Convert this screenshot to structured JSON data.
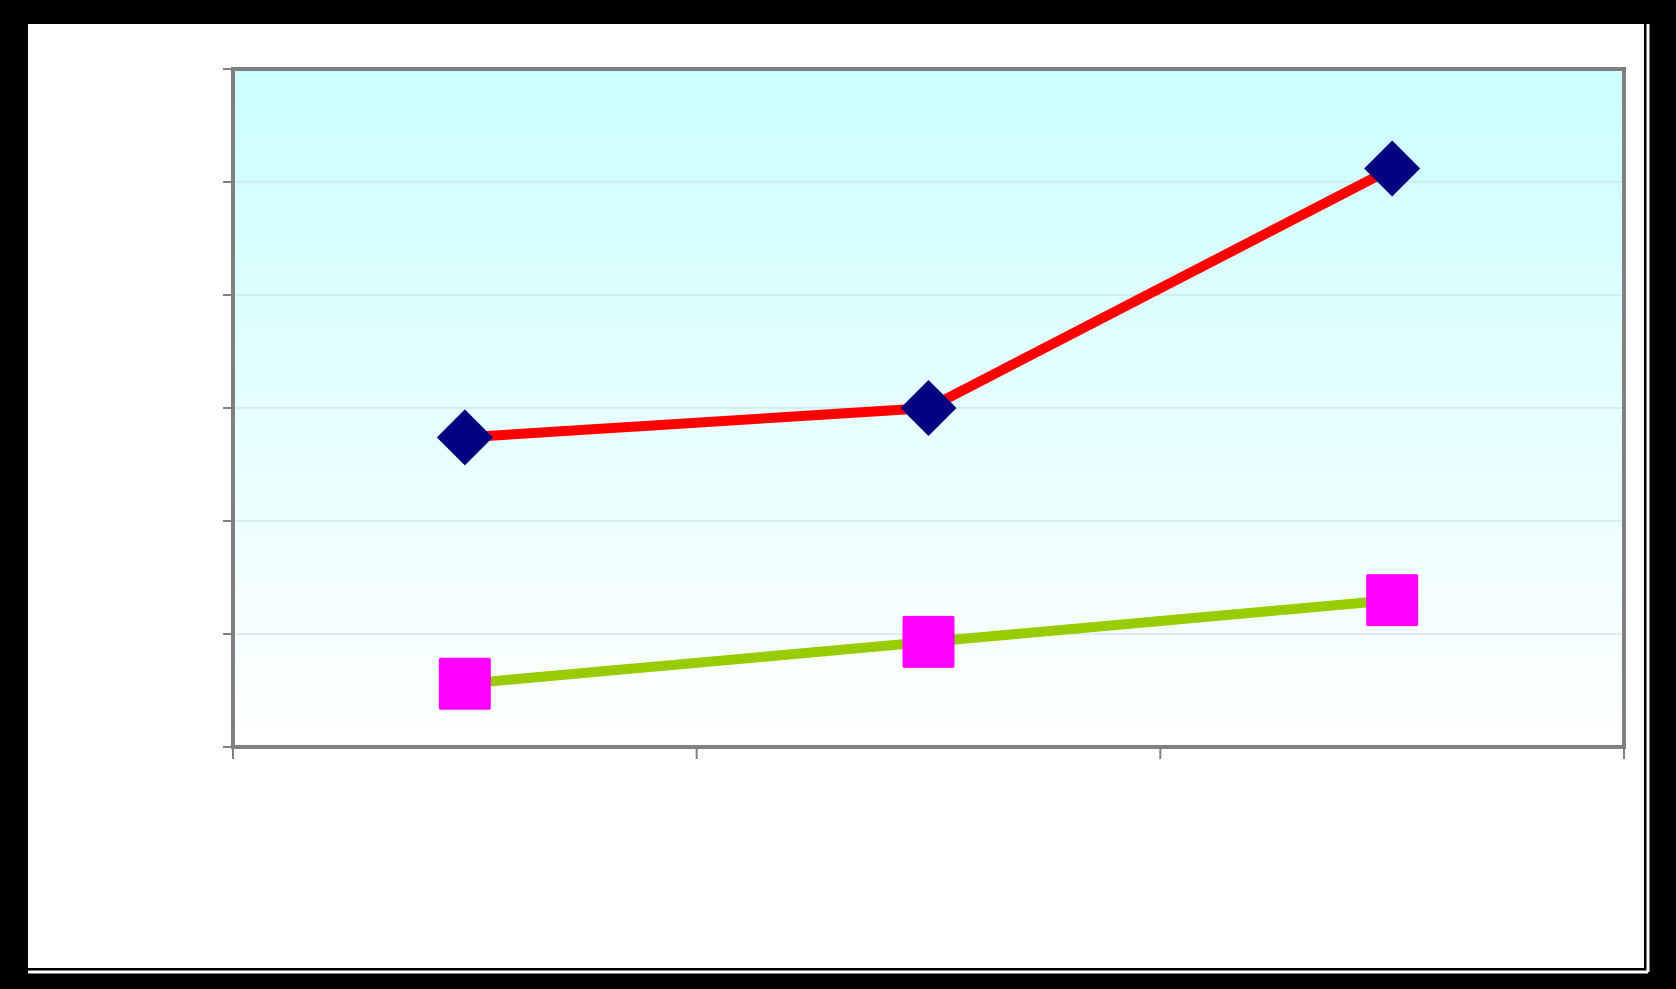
{
  "chart_data": {
    "type": "line",
    "title": "",
    "xlabel": "",
    "ylabel": "",
    "categories": [
      "",
      "",
      ""
    ],
    "ylim": [
      0,
      6
    ],
    "y_gridlines": 6,
    "grid": true,
    "legend": "none",
    "series": [
      {
        "values": [
          2.74,
          3.0,
          5.12
        ],
        "line_color": "#ff0000",
        "marker": "diamond",
        "marker_color": "#000080"
      },
      {
        "values": [
          0.56,
          0.93,
          1.3
        ],
        "line_color": "#99cc00",
        "marker": "square",
        "marker_color": "#ff00ff"
      }
    ]
  },
  "colors": {
    "frame": "#000000",
    "chart_background": "#ffffff",
    "plot_top": "#ccffff",
    "plot_bottom": "#ffffff",
    "axis": "#808080",
    "gridline": "#c8dede"
  }
}
